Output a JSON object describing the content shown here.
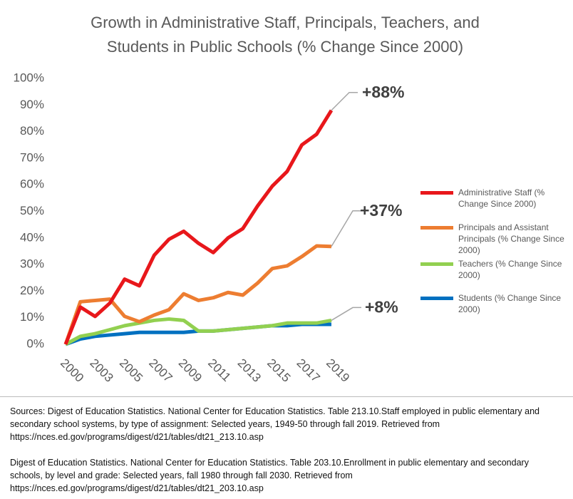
{
  "chart_data": {
    "type": "line",
    "title": "Growth in Administrative Staff, Principals, Teachers, and Students in Public Schools (% Change Since 2000)",
    "categories": [
      "2000",
      null,
      "2003",
      null,
      "2005",
      null,
      "2007",
      null,
      "2009",
      null,
      "2011",
      null,
      "2013",
      null,
      "2015",
      null,
      "2017",
      null,
      "2019"
    ],
    "series": [
      {
        "name": "Administrative Staff (% Change Since 2000)",
        "color": "#e8171b",
        "values": [
          0,
          14,
          10.5,
          15.5,
          24.5,
          22,
          33.5,
          39.5,
          42.5,
          38,
          34.5,
          40,
          43.5,
          52,
          59.5,
          65,
          75,
          79,
          88
        ]
      },
      {
        "name": "Principals and Assistant Principals (% Change Since 2000)",
        "color": "#ed7d31",
        "values": [
          0,
          16,
          16.5,
          17,
          10.5,
          8.5,
          11,
          13,
          19,
          16.5,
          17.5,
          19.5,
          18.5,
          23,
          28.5,
          29.5,
          33,
          37,
          36.8
        ]
      },
      {
        "name": "Teachers (% Change Since 2000)",
        "color": "#92d050",
        "values": [
          0,
          3,
          4,
          5.5,
          7,
          8,
          9,
          9.5,
          9,
          5,
          5,
          5.5,
          6,
          6.5,
          7,
          8,
          8,
          8,
          9
        ]
      },
      {
        "name": "Students (% Change Since 2000)",
        "color": "#0070c0",
        "values": [
          0,
          2,
          3,
          3.5,
          4,
          4.5,
          4.5,
          4.5,
          4.5,
          5,
          5,
          5.5,
          6,
          6.5,
          7,
          7,
          7.5,
          7.5,
          7.5
        ]
      }
    ],
    "ylim": [
      0,
      100
    ],
    "yticks": [
      {
        "value": 0,
        "label": "0%"
      },
      {
        "value": 10,
        "label": "10%"
      },
      {
        "value": 20,
        "label": "20%"
      },
      {
        "value": 30,
        "label": "30%"
      },
      {
        "value": 40,
        "label": "40%"
      },
      {
        "value": 50,
        "label": "50%"
      },
      {
        "value": 60,
        "label": "60%"
      },
      {
        "value": 70,
        "label": "70%"
      },
      {
        "value": 80,
        "label": "80%"
      },
      {
        "value": 90,
        "label": "90%"
      },
      {
        "value": 100,
        "label": "100%"
      }
    ],
    "annotations": [
      "+88%",
      "+37%",
      "+8%"
    ],
    "legend": "right",
    "sources": [
      "Sources: Digest of Education Statistics. National Center for Education Statistics. Table 213.10.Staff employed in public elementary and secondary school systems, by type of assignment: Selected years, 1949-50 through fall 2019. Retrieved from https://nces.ed.gov/programs/digest/d21/tables/dt21_213.10.asp",
      "Digest of Education Statistics. National Center for Education Statistics. Table 203.10.Enrollment in public elementary and secondary schools, by level and grade: Selected years, fall 1980 through fall 2030. Retrieved from https://nces.ed.gov/programs/digest/d21/tables/dt21_203.10.asp"
    ]
  }
}
